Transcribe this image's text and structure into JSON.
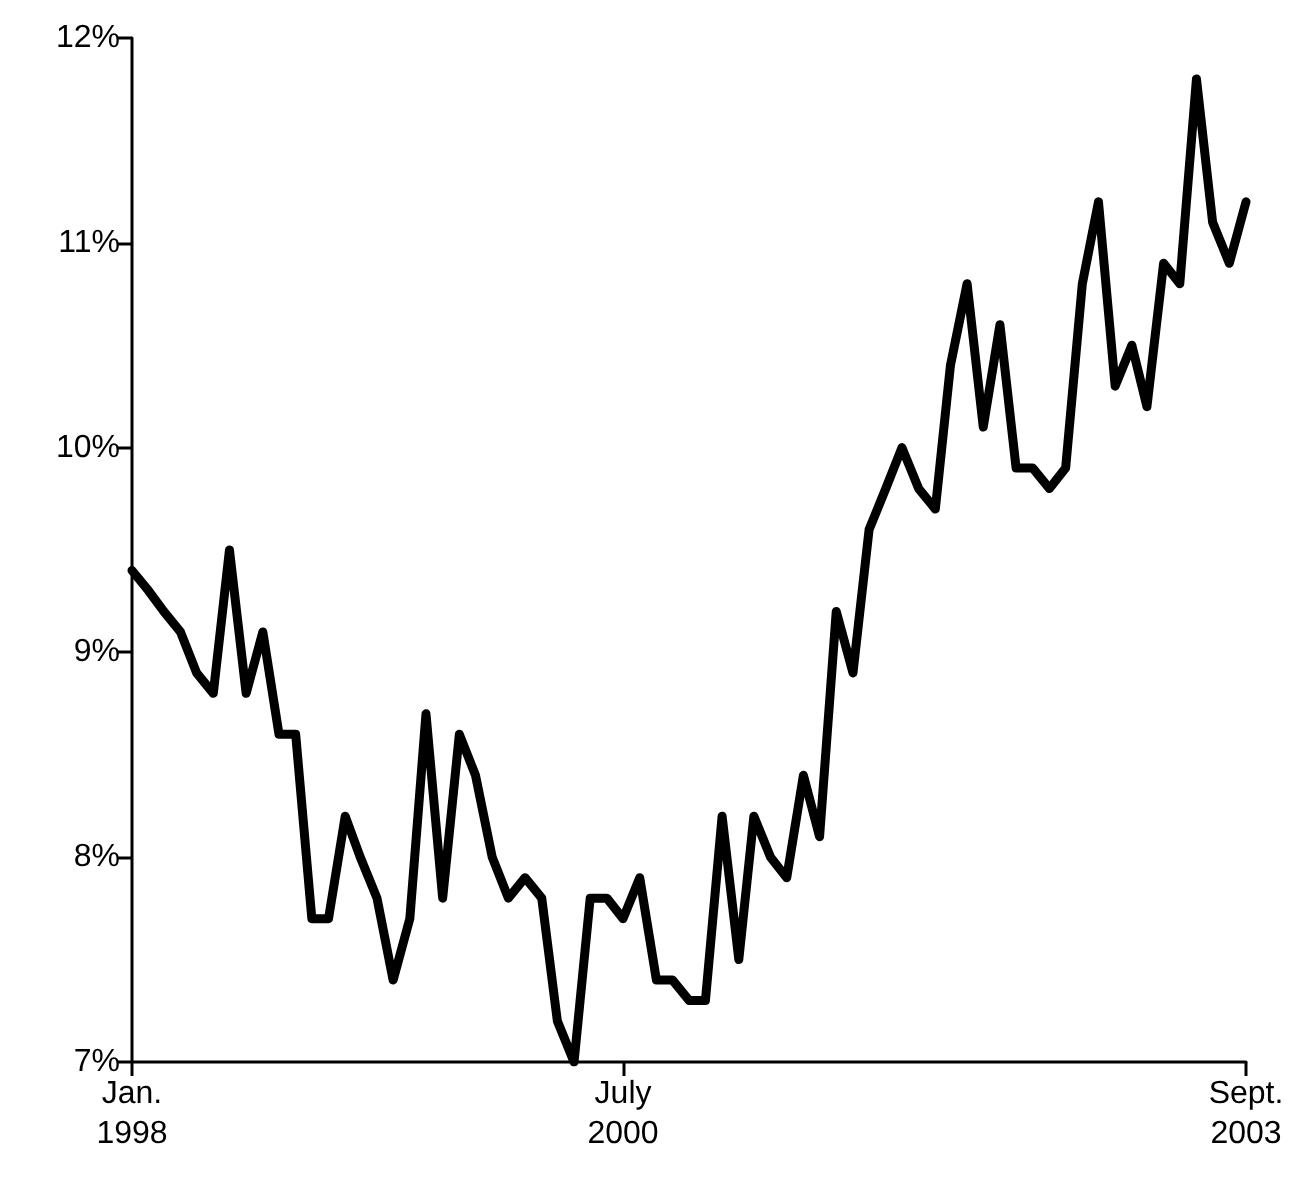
{
  "chart_data": {
    "type": "line",
    "x": [
      "1998-01",
      "1998-02",
      "1998-03",
      "1998-04",
      "1998-05",
      "1998-06",
      "1998-07",
      "1998-08",
      "1998-09",
      "1998-10",
      "1998-11",
      "1998-12",
      "1999-01",
      "1999-02",
      "1999-03",
      "1999-04",
      "1999-05",
      "1999-06",
      "1999-07",
      "1999-08",
      "1999-09",
      "1999-10",
      "1999-11",
      "1999-12",
      "2000-01",
      "2000-02",
      "2000-03",
      "2000-04",
      "2000-05",
      "2000-06",
      "2000-07",
      "2000-08",
      "2000-09",
      "2000-10",
      "2000-11",
      "2000-12",
      "2001-01",
      "2001-02",
      "2001-03",
      "2001-04",
      "2001-05",
      "2001-06",
      "2001-07",
      "2001-08",
      "2001-09",
      "2001-10",
      "2001-11",
      "2001-12",
      "2002-01",
      "2002-02",
      "2002-03",
      "2002-04",
      "2002-05",
      "2002-06",
      "2002-07",
      "2002-08",
      "2002-09",
      "2002-10",
      "2002-11",
      "2002-12",
      "2003-01",
      "2003-02",
      "2003-03",
      "2003-04",
      "2003-05",
      "2003-06",
      "2003-07",
      "2003-08",
      "2003-09"
    ],
    "series": [
      {
        "color": "#000000",
        "values": [
          9.4,
          9.3,
          9.2,
          9.1,
          8.9,
          8.8,
          9.5,
          8.8,
          9.1,
          8.6,
          8.6,
          7.7,
          7.7,
          8.2,
          8.0,
          7.8,
          7.4,
          7.7,
          8.7,
          7.8,
          8.6,
          8.4,
          8.0,
          7.8,
          7.9,
          7.8,
          7.2,
          7.0,
          7.8,
          7.8,
          7.7,
          7.9,
          7.4,
          7.4,
          7.3,
          7.3,
          8.2,
          7.5,
          8.2,
          8.0,
          7.9,
          8.4,
          8.1,
          9.2,
          8.9,
          9.6,
          9.8,
          10.0,
          9.8,
          9.7,
          10.4,
          10.8,
          10.1,
          10.6,
          9.9,
          9.9,
          9.8,
          9.9,
          10.8,
          11.2,
          10.3,
          10.5,
          10.2,
          10.9,
          10.8,
          11.8,
          11.1,
          10.9,
          11.2
        ]
      }
    ],
    "xlim": [
      "1998-01",
      "2003-09"
    ],
    "xticks": [
      {
        "value": "1998-01",
        "label": "Jan.\n1998"
      },
      {
        "value": "2000-07",
        "label": "July\n2000"
      },
      {
        "value": "2003-09",
        "label": "Sept.\n2003"
      }
    ],
    "ylim": [
      7,
      12
    ],
    "yticks": [
      {
        "value": 7,
        "label": "7%"
      },
      {
        "value": 8,
        "label": "8%"
      },
      {
        "value": 9,
        "label": "9%"
      },
      {
        "value": 10,
        "label": "10%"
      },
      {
        "value": 11,
        "label": "11%"
      },
      {
        "value": 12,
        "label": "12%"
      }
    ],
    "grid": false,
    "marker": "none",
    "line_style": "solid"
  }
}
